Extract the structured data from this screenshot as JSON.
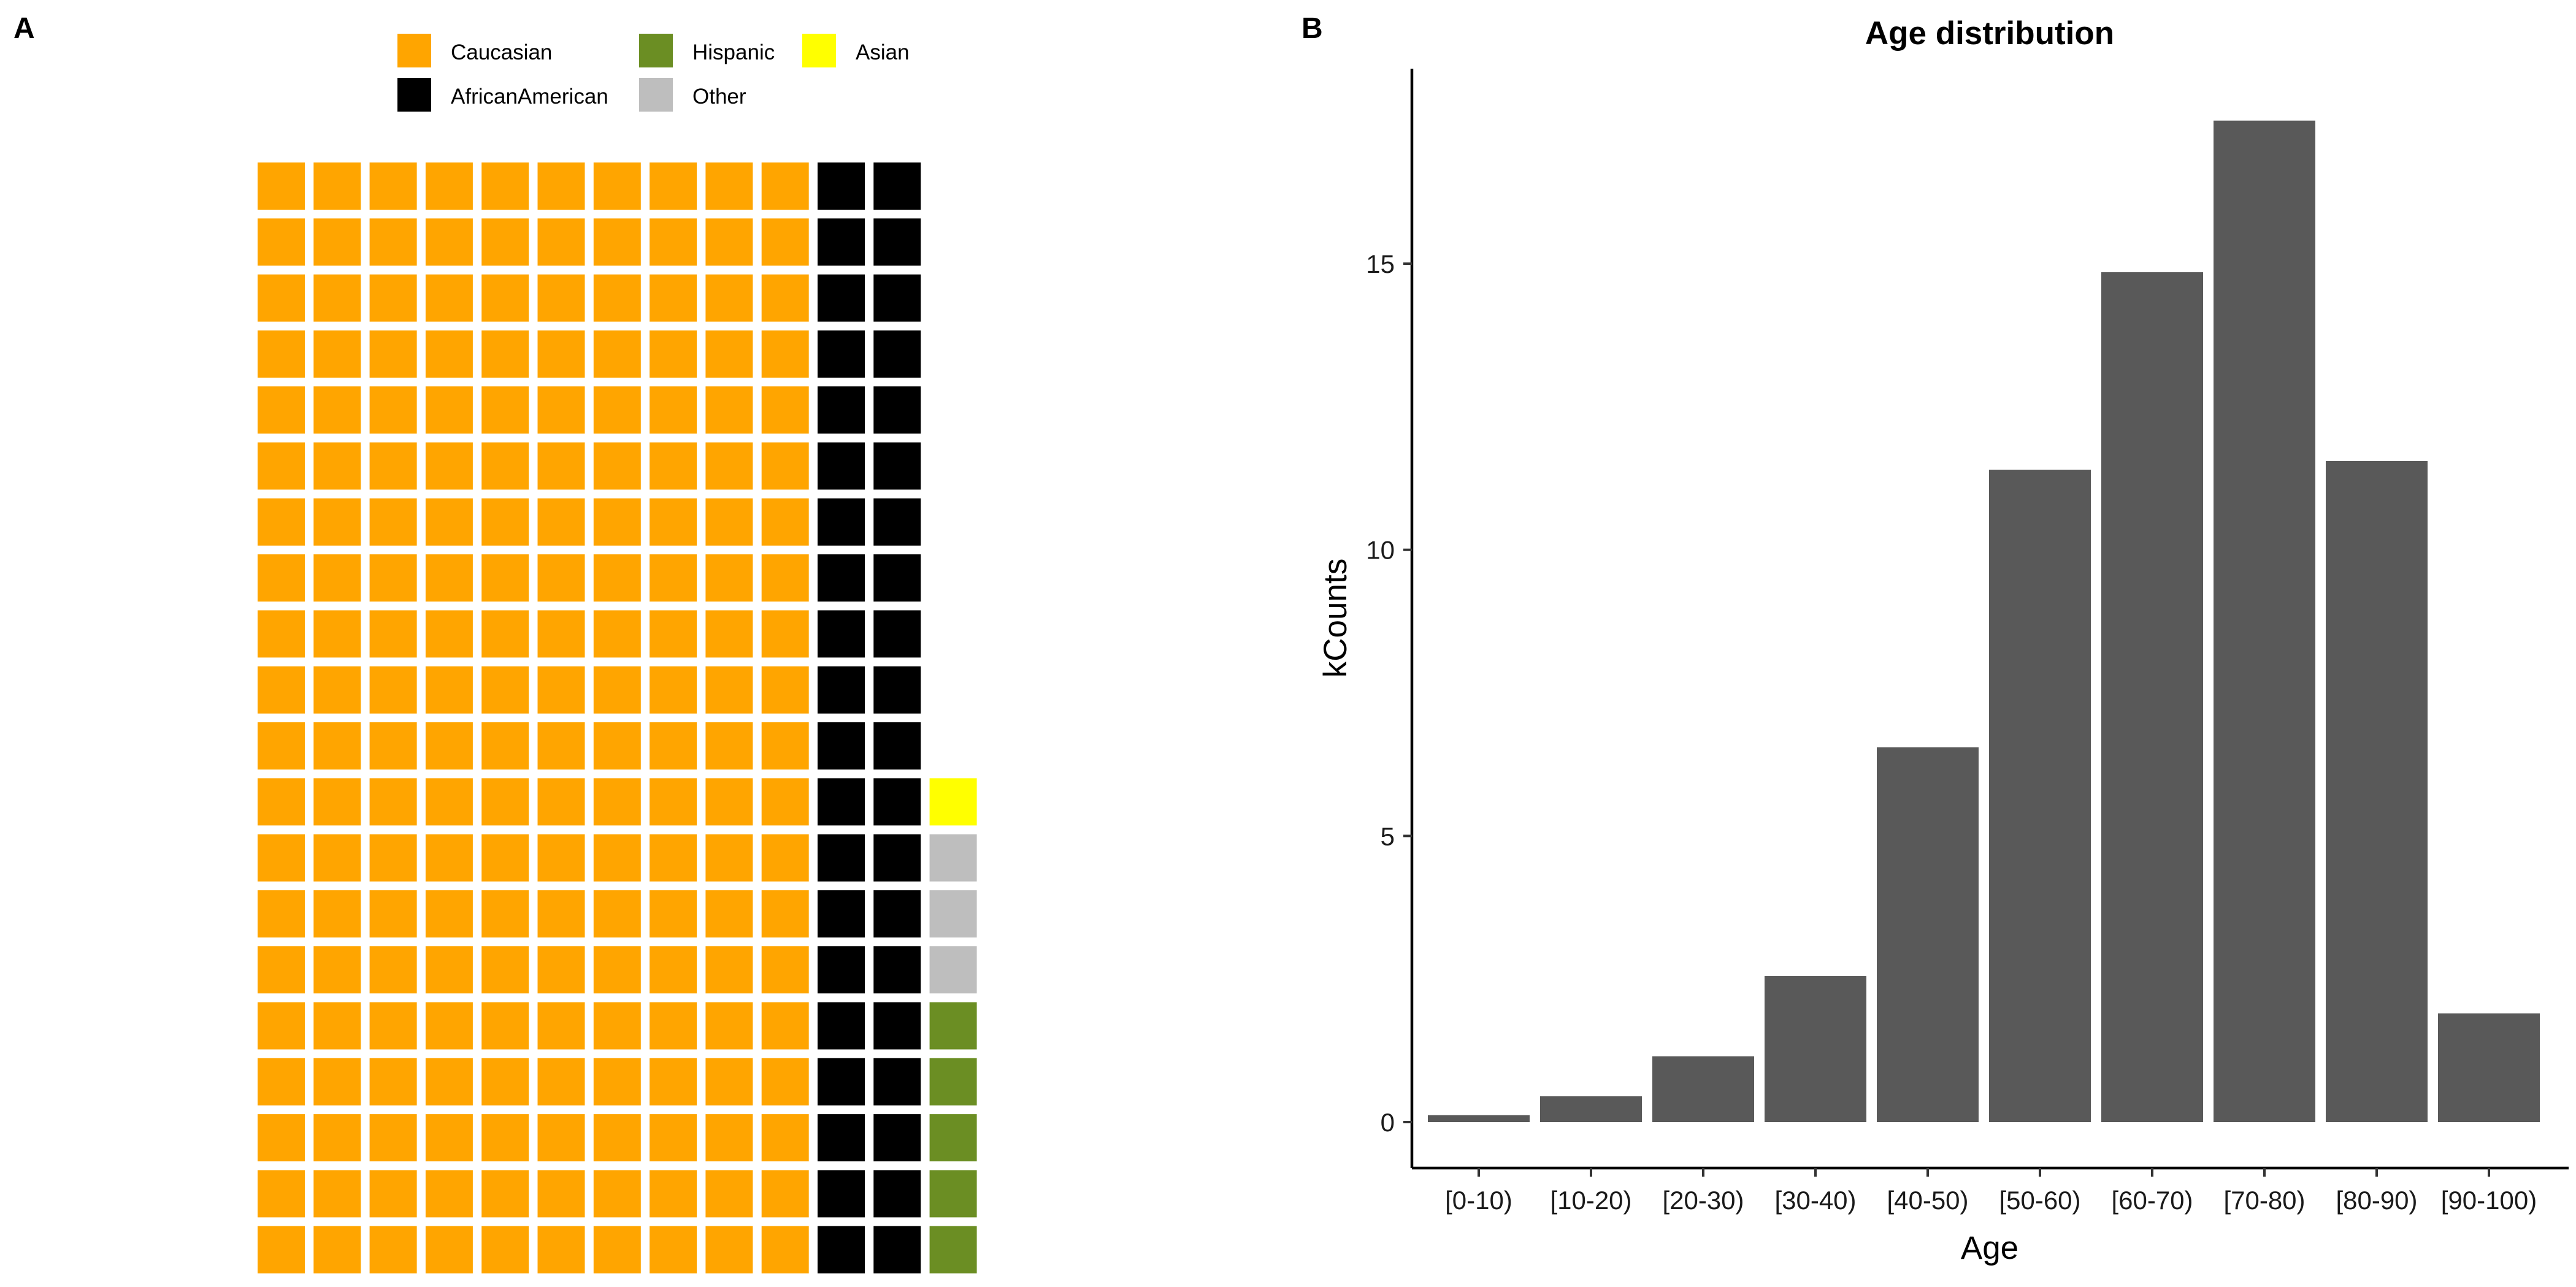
{
  "panels": {
    "a_label": "A",
    "b_label": "B"
  },
  "colors": {
    "Caucasian": "#FFA500",
    "AfricanAmerican": "#000000",
    "Hispanic": "#6B8E23",
    "Other": "#BEBEBE",
    "Asian": "#FFFF00",
    "bar": "#595959"
  },
  "chart_data": [
    {
      "type": "waffle",
      "grid": {
        "rows": 20,
        "cols": 13
      },
      "categories": [
        "Caucasian",
        "AfricanAmerican",
        "Hispanic",
        "Other",
        "Asian"
      ],
      "values": [
        200,
        40,
        5,
        3,
        1
      ],
      "legend": [
        {
          "label": "Caucasian",
          "color_key": "Caucasian"
        },
        {
          "label": "Hispanic",
          "color_key": "Hispanic"
        },
        {
          "label": "Asian",
          "color_key": "Asian"
        },
        {
          "label": "AfricanAmerican",
          "color_key": "AfricanAmerican"
        },
        {
          "label": "Other",
          "color_key": "Other"
        }
      ],
      "legend_placement": "top"
    },
    {
      "type": "bar",
      "title": "Age distribution",
      "xlabel": "Age",
      "ylabel": "kCounts",
      "categories": [
        "[0-10)",
        "[10-20)",
        "[20-30)",
        "[30-40)",
        "[40-50)",
        "[50-60)",
        "[60-70)",
        "[70-80)",
        "[80-90)",
        "[90-100)"
      ],
      "values": [
        0.12,
        0.45,
        1.15,
        2.55,
        6.55,
        11.4,
        14.85,
        17.5,
        11.55,
        1.9
      ],
      "yticks": [
        0,
        5,
        10,
        15
      ],
      "ylim": [
        -0.5,
        18.4
      ],
      "grid": false
    }
  ]
}
